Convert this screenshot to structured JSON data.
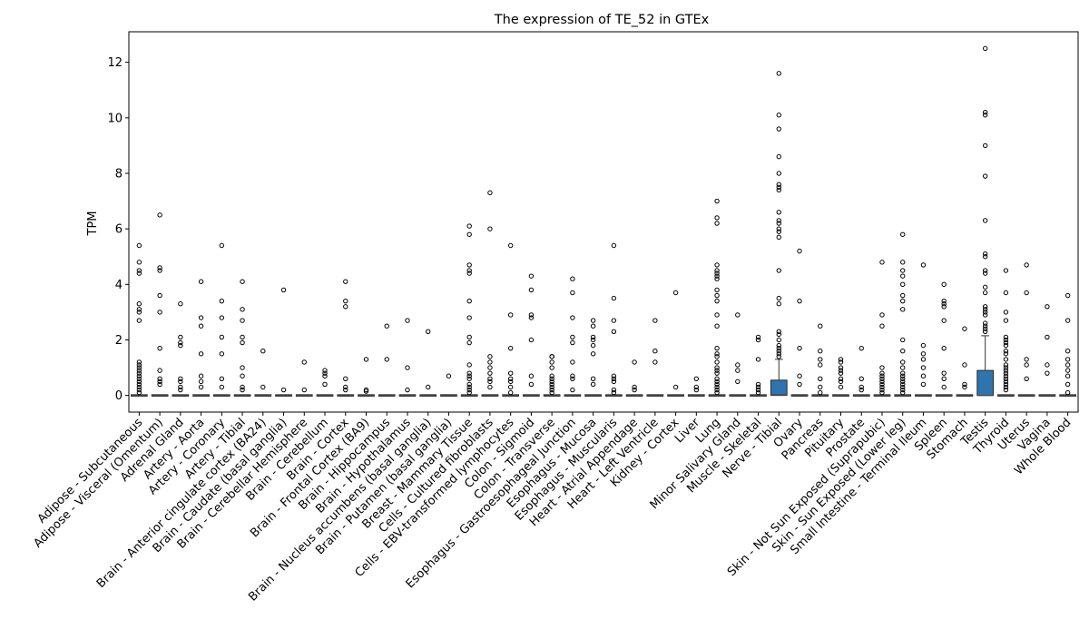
{
  "chart_data": {
    "type": "box",
    "title": "The expression of TE_52 in GTEx",
    "ylabel": "TPM",
    "xlabel": "",
    "ylim": [
      -0.6,
      13.1
    ],
    "yticks": [
      0,
      2,
      4,
      6,
      8,
      10,
      12
    ],
    "grid": false,
    "box_color": "#2e75b0",
    "categories": [
      "Adipose - Subcutaneous",
      "Adipose - Visceral (Omentum)",
      "Adrenal Gland",
      "Artery - Aorta",
      "Artery - Coronary",
      "Artery - Tibial",
      "Brain - Anterior cingulate cortex (BA24)",
      "Brain - Caudate (basal ganglia)",
      "Brain - Cerebellar Hemisphere",
      "Brain - Cerebellum",
      "Brain - Cortex",
      "Brain - Frontal Cortex (BA9)",
      "Brain - Hippocampus",
      "Brain - Hypothalamus",
      "Brain - Nucleus accumbens (basal ganglia)",
      "Brain - Putamen (basal ganglia)",
      "Breast - Mammary Tissue",
      "Cells - Cultured fibroblasts",
      "Cells - EBV-transformed lymphocytes",
      "Colon - Sigmoid",
      "Colon - Transverse",
      "Esophagus - Gastroesophageal Junction",
      "Esophagus - Mucosa",
      "Esophagus - Muscularis",
      "Heart - Atrial Appendage",
      "Heart - Left Ventricle",
      "Kidney - Cortex",
      "Liver",
      "Lung",
      "Minor Salivary Gland",
      "Muscle - Skeletal",
      "Nerve - Tibial",
      "Ovary",
      "Pancreas",
      "Pituitary",
      "Prostate",
      "Skin - Not Sun Exposed (Suprapubic)",
      "Skin - Sun Exposed (Lower leg)",
      "Small Intestine - Terminal Ileum",
      "Spleen",
      "Stomach",
      "Testis",
      "Thyroid",
      "Uterus",
      "Vagina",
      "Whole Blood"
    ],
    "boxes": [
      {
        "q1": 0,
        "median": 0,
        "q3": 0,
        "whisker_low": 0,
        "whisker_high": 0,
        "outliers": [
          5.4,
          4.8,
          4.5,
          4.4,
          3.3,
          3.1,
          3.0,
          2.7,
          1.2,
          1.1,
          1.0,
          0.9,
          0.8,
          0.7,
          0.6,
          0.5,
          0.4,
          0.3,
          0.2,
          0.1
        ]
      },
      {
        "q1": 0,
        "median": 0,
        "q3": 0,
        "whisker_low": 0,
        "whisker_high": 0,
        "outliers": [
          6.5,
          4.6,
          4.5,
          3.6,
          3.0,
          1.7,
          0.9,
          0.6,
          0.5,
          0.4
        ]
      },
      {
        "q1": 0,
        "median": 0,
        "q3": 0,
        "whisker_low": 0,
        "whisker_high": 0,
        "outliers": [
          3.3,
          2.1,
          1.9,
          1.8,
          0.6,
          0.5,
          0.3,
          0.2
        ]
      },
      {
        "q1": 0,
        "median": 0,
        "q3": 0,
        "whisker_low": 0,
        "whisker_high": 0,
        "outliers": [
          4.1,
          2.8,
          2.5,
          1.5,
          0.7,
          0.5,
          0.3
        ]
      },
      {
        "q1": 0,
        "median": 0,
        "q3": 0,
        "whisker_low": 0,
        "whisker_high": 0,
        "outliers": [
          5.4,
          3.4,
          2.8,
          2.1,
          1.5,
          0.6,
          0.3
        ]
      },
      {
        "q1": 0,
        "median": 0,
        "q3": 0,
        "whisker_low": 0,
        "whisker_high": 0,
        "outliers": [
          4.1,
          3.1,
          2.7,
          2.1,
          1.9,
          1.0,
          0.7,
          0.3,
          0.2
        ]
      },
      {
        "q1": 0,
        "median": 0,
        "q3": 0,
        "whisker_low": 0,
        "whisker_high": 0,
        "outliers": [
          1.6,
          0.3
        ]
      },
      {
        "q1": 0,
        "median": 0,
        "q3": 0,
        "whisker_low": 0,
        "whisker_high": 0,
        "outliers": [
          3.8,
          0.2
        ]
      },
      {
        "q1": 0,
        "median": 0,
        "q3": 0,
        "whisker_low": 0,
        "whisker_high": 0,
        "outliers": [
          1.2,
          0.2
        ]
      },
      {
        "q1": 0,
        "median": 0,
        "q3": 0,
        "whisker_low": 0,
        "whisker_high": 0,
        "outliers": [
          0.9,
          0.8,
          0.7,
          0.4
        ]
      },
      {
        "q1": 0,
        "median": 0,
        "q3": 0,
        "whisker_low": 0,
        "whisker_high": 0,
        "outliers": [
          4.1,
          3.4,
          3.2,
          0.6,
          0.3,
          0.2
        ]
      },
      {
        "q1": 0,
        "median": 0,
        "q3": 0,
        "whisker_low": 0,
        "whisker_high": 0,
        "outliers": [
          1.3,
          0.2,
          0.15
        ]
      },
      {
        "q1": 0,
        "median": 0,
        "q3": 0,
        "whisker_low": 0,
        "whisker_high": 0,
        "outliers": [
          2.5,
          1.3
        ]
      },
      {
        "q1": 0,
        "median": 0,
        "q3": 0,
        "whisker_low": 0,
        "whisker_high": 0,
        "outliers": [
          2.7,
          1.0,
          0.2
        ]
      },
      {
        "q1": 0,
        "median": 0,
        "q3": 0,
        "whisker_low": 0,
        "whisker_high": 0,
        "outliers": [
          2.3,
          0.3
        ]
      },
      {
        "q1": 0,
        "median": 0,
        "q3": 0,
        "whisker_low": 0,
        "whisker_high": 0,
        "outliers": [
          0.7
        ]
      },
      {
        "q1": 0,
        "median": 0,
        "q3": 0,
        "whisker_low": 0,
        "whisker_high": 0,
        "outliers": [
          6.1,
          5.8,
          4.7,
          4.5,
          4.4,
          3.4,
          2.8,
          2.1,
          1.9,
          1.1,
          0.8,
          0.7,
          0.6,
          0.4,
          0.3,
          0.2,
          0.1
        ]
      },
      {
        "q1": 0,
        "median": 0,
        "q3": 0,
        "whisker_low": 0,
        "whisker_high": 0,
        "outliers": [
          7.3,
          6.0,
          1.4,
          1.2,
          1.0,
          0.8,
          0.6,
          0.5,
          0.3
        ]
      },
      {
        "q1": 0,
        "median": 0,
        "q3": 0,
        "whisker_low": 0,
        "whisker_high": 0,
        "outliers": [
          5.4,
          2.9,
          1.7,
          0.8,
          0.6,
          0.5,
          0.3,
          0.1
        ]
      },
      {
        "q1": 0,
        "median": 0,
        "q3": 0,
        "whisker_low": 0,
        "whisker_high": 0,
        "outliers": [
          4.3,
          3.8,
          2.9,
          2.8,
          2.0,
          0.7,
          0.4
        ]
      },
      {
        "q1": 0,
        "median": 0,
        "q3": 0,
        "whisker_low": 0,
        "whisker_high": 0,
        "outliers": [
          1.4,
          1.4,
          1.2,
          1.0,
          0.7,
          0.6,
          0.5,
          0.4,
          0.3,
          0.2,
          0.1
        ]
      },
      {
        "q1": 0,
        "median": 0,
        "q3": 0,
        "whisker_low": 0,
        "whisker_high": 0,
        "outliers": [
          4.2,
          3.7,
          2.8,
          2.1,
          1.9,
          1.2,
          0.7,
          0.6,
          0.2
        ]
      },
      {
        "q1": 0,
        "median": 0,
        "q3": 0,
        "whisker_low": 0,
        "whisker_high": 0,
        "outliers": [
          2.7,
          2.5,
          2.1,
          2.0,
          1.8,
          1.5,
          0.6,
          0.4
        ]
      },
      {
        "q1": 0,
        "median": 0,
        "q3": 0,
        "whisker_low": 0,
        "whisker_high": 0,
        "outliers": [
          5.4,
          3.5,
          2.7,
          2.3,
          0.7,
          0.6,
          0.5,
          0.2,
          0.1
        ]
      },
      {
        "q1": 0,
        "median": 0,
        "q3": 0,
        "whisker_low": 0,
        "whisker_high": 0,
        "outliers": [
          1.2,
          0.3,
          0.2
        ]
      },
      {
        "q1": 0,
        "median": 0,
        "q3": 0,
        "whisker_low": 0,
        "whisker_high": 0,
        "outliers": [
          2.7,
          1.6,
          1.2
        ]
      },
      {
        "q1": 0,
        "median": 0,
        "q3": 0,
        "whisker_low": 0,
        "whisker_high": 0,
        "outliers": [
          3.7,
          0.3
        ]
      },
      {
        "q1": 0,
        "median": 0,
        "q3": 0,
        "whisker_low": 0,
        "whisker_high": 0,
        "outliers": [
          0.6,
          0.3,
          0.2
        ]
      },
      {
        "q1": 0,
        "median": 0,
        "q3": 0,
        "whisker_low": 0,
        "whisker_high": 0,
        "outliers": [
          7.0,
          6.4,
          6.2,
          4.7,
          4.5,
          4.4,
          4.3,
          4.2,
          3.8,
          3.6,
          3.4,
          2.9,
          2.5,
          1.7,
          1.5,
          1.4,
          1.2,
          1.0,
          0.9,
          0.8,
          0.6,
          0.5,
          0.4,
          0.3,
          0.2,
          0.1
        ]
      },
      {
        "q1": 0,
        "median": 0,
        "q3": 0,
        "whisker_low": 0,
        "whisker_high": 0,
        "outliers": [
          2.9,
          1.1,
          0.9,
          0.5
        ]
      },
      {
        "q1": 0,
        "median": 0,
        "q3": 0,
        "whisker_low": 0,
        "whisker_high": 0,
        "outliers": [
          2.1,
          2.0,
          1.3,
          0.4,
          0.3,
          0.2,
          0.1
        ]
      },
      {
        "q1": 0,
        "median": 0.02,
        "q3": 0.55,
        "whisker_low": 0,
        "whisker_high": 1.3,
        "outliers": [
          11.6,
          10.1,
          9.6,
          8.6,
          8.0,
          7.6,
          7.5,
          7.4,
          6.6,
          6.3,
          6.2,
          6.0,
          5.9,
          5.7,
          4.5,
          3.5,
          3.3,
          2.3,
          2.2,
          2.0,
          1.8,
          1.7,
          1.6,
          1.5,
          1.4
        ]
      },
      {
        "q1": 0,
        "median": 0,
        "q3": 0,
        "whisker_low": 0,
        "whisker_high": 0,
        "outliers": [
          5.2,
          3.4,
          1.7,
          0.7,
          0.4
        ]
      },
      {
        "q1": 0,
        "median": 0,
        "q3": 0,
        "whisker_low": 0,
        "whisker_high": 0,
        "outliers": [
          2.5,
          1.6,
          1.3,
          1.1,
          0.6,
          0.3,
          0.1
        ]
      },
      {
        "q1": 0,
        "median": 0,
        "q3": 0,
        "whisker_low": 0,
        "whisker_high": 0,
        "outliers": [
          1.3,
          1.2,
          1.0,
          0.9,
          0.8,
          0.6,
          0.5,
          0.3
        ]
      },
      {
        "q1": 0,
        "median": 0,
        "q3": 0,
        "whisker_low": 0,
        "whisker_high": 0,
        "outliers": [
          1.7,
          0.6,
          0.3,
          0.2
        ]
      },
      {
        "q1": 0,
        "median": 0,
        "q3": 0,
        "whisker_low": 0,
        "whisker_high": 0,
        "outliers": [
          4.8,
          2.9,
          2.5,
          1.0,
          0.8,
          0.7,
          0.6,
          0.5,
          0.4,
          0.3,
          0.2,
          0.1
        ]
      },
      {
        "q1": 0,
        "median": 0,
        "q3": 0,
        "whisker_low": 0,
        "whisker_high": 0,
        "outliers": [
          5.8,
          4.8,
          4.5,
          4.3,
          4.0,
          3.6,
          3.4,
          3.1,
          2.0,
          1.6,
          1.2,
          1.0,
          0.8,
          0.7,
          0.6,
          0.5,
          0.4,
          0.3,
          0.2,
          0.1
        ]
      },
      {
        "q1": 0,
        "median": 0,
        "q3": 0,
        "whisker_low": 0,
        "whisker_high": 0,
        "outliers": [
          4.7,
          1.8,
          1.5,
          1.3,
          1.0,
          0.7,
          0.4
        ]
      },
      {
        "q1": 0,
        "median": 0,
        "q3": 0,
        "whisker_low": 0,
        "whisker_high": 0,
        "outliers": [
          4.0,
          3.4,
          3.3,
          3.2,
          2.7,
          1.7,
          0.8,
          0.6,
          0.3
        ]
      },
      {
        "q1": 0,
        "median": 0,
        "q3": 0,
        "whisker_low": 0,
        "whisker_high": 0,
        "outliers": [
          2.4,
          1.1,
          0.4,
          0.3
        ]
      },
      {
        "q1": 0,
        "median": 0,
        "q3": 0.9,
        "whisker_low": 0,
        "whisker_high": 2.15,
        "outliers": [
          12.5,
          10.2,
          10.1,
          9.0,
          7.9,
          6.3,
          5.1,
          5.0,
          4.5,
          4.4,
          3.9,
          3.7,
          3.2,
          3.1,
          3.0,
          2.9,
          2.6,
          2.5,
          2.4,
          2.3
        ]
      },
      {
        "q1": 0,
        "median": 0,
        "q3": 0,
        "whisker_low": 0,
        "whisker_high": 0,
        "outliers": [
          4.5,
          3.7,
          3.0,
          2.7,
          2.1,
          2.0,
          1.9,
          1.8,
          1.6,
          1.5,
          1.3,
          1.1,
          1.0,
          0.9,
          0.8,
          0.7,
          0.6,
          0.5,
          0.4,
          0.3,
          0.2
        ]
      },
      {
        "q1": 0,
        "median": 0,
        "q3": 0,
        "whisker_low": 0,
        "whisker_high": 0,
        "outliers": [
          4.7,
          3.7,
          1.3,
          1.1,
          0.6
        ]
      },
      {
        "q1": 0,
        "median": 0,
        "q3": 0,
        "whisker_low": 0,
        "whisker_high": 0,
        "outliers": [
          3.2,
          2.1,
          1.1,
          0.8
        ]
      },
      {
        "q1": 0,
        "median": 0,
        "q3": 0,
        "whisker_low": 0,
        "whisker_high": 0,
        "outliers": [
          3.6,
          2.7,
          1.6,
          1.3,
          1.1,
          0.9,
          0.7,
          0.4,
          0.1
        ]
      }
    ]
  }
}
